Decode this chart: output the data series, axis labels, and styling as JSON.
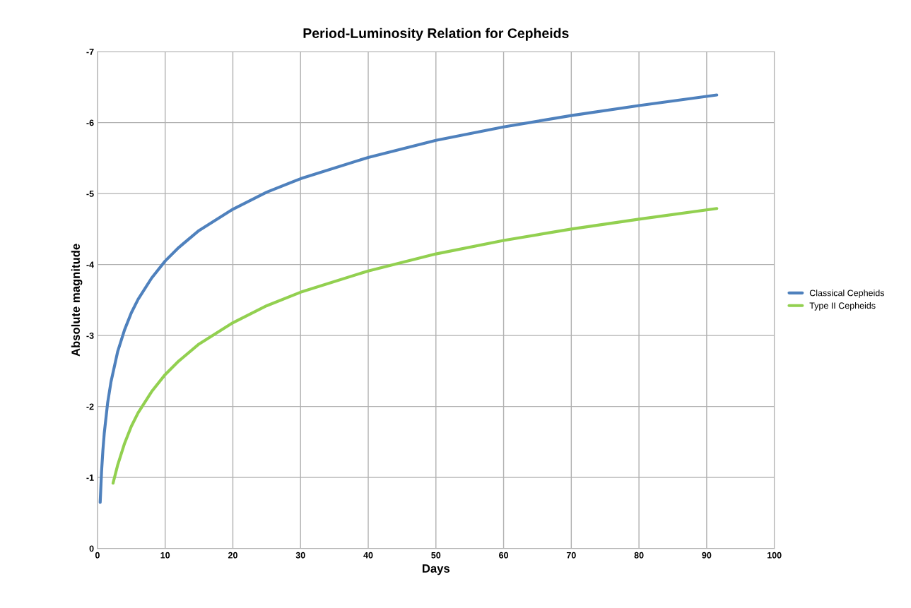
{
  "chart_data": {
    "type": "line",
    "title": "Period-Luminosity Relation for Cepheids",
    "xlabel": "Days",
    "ylabel": "Absolute magnitude",
    "xlim": [
      0,
      100
    ],
    "xticks": [
      0,
      10,
      20,
      30,
      40,
      50,
      60,
      70,
      80,
      90,
      100
    ],
    "ylim": [
      0,
      -7
    ],
    "yticks": [
      0,
      -1,
      -2,
      -3,
      -4,
      -5,
      -6,
      -7
    ],
    "grid": true,
    "legend": "right",
    "marker": "none",
    "line_style": "solid",
    "series": [
      {
        "name": "Classical Cepheids",
        "color": "#4f81bd",
        "x": [
          0.4,
          0.6,
          0.8,
          1,
          1.5,
          2,
          3,
          4,
          5,
          6,
          8,
          10,
          12,
          15,
          20,
          25,
          30,
          40,
          50,
          60,
          70,
          80,
          91.5
        ],
        "values": [
          -0.65,
          -1.08,
          -1.38,
          -1.62,
          -2.05,
          -2.35,
          -2.78,
          -3.08,
          -3.32,
          -3.51,
          -3.81,
          -4.05,
          -4.24,
          -4.48,
          -4.78,
          -5.02,
          -5.21,
          -5.51,
          -5.75,
          -5.94,
          -6.1,
          -6.24,
          -6.39
        ]
      },
      {
        "name": "Type II Cepheids",
        "color": "#92d050",
        "x": [
          2.3,
          3,
          4,
          5,
          6,
          8,
          10,
          12,
          15,
          20,
          25,
          30,
          40,
          50,
          60,
          70,
          80,
          91.5
        ],
        "values": [
          -0.92,
          -1.18,
          -1.48,
          -1.72,
          -1.91,
          -2.21,
          -2.45,
          -2.64,
          -2.88,
          -3.18,
          -3.42,
          -3.61,
          -3.91,
          -4.15,
          -4.34,
          -4.5,
          -4.64,
          -4.79
        ]
      }
    ]
  }
}
